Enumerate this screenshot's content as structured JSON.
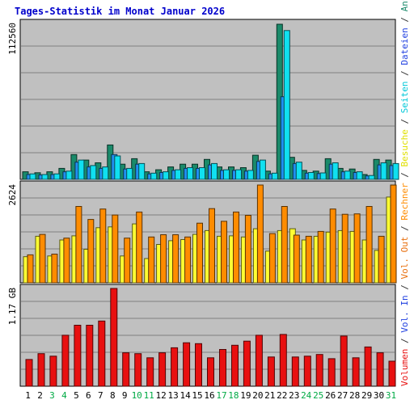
{
  "title": "Tages-Statistik im Monat Januar 2026",
  "colors": {
    "panel_bg": "#c0c0c0",
    "grid": "#808080",
    "anfragen": "#1a8a6a",
    "dateien": "#2090f0",
    "seiten": "#10e0f0",
    "besuche": "#ffff33",
    "rechner": "#ff8c00",
    "volumen": "#e81010",
    "weekday_label": "#000000",
    "weekend_label": "#00aa44",
    "sep": "#606060",
    "slash": "#333333"
  },
  "chart_data": [
    {
      "type": "bar",
      "ytick_label": "112560",
      "ylim": [
        0,
        112560
      ],
      "categories": [
        "1",
        "2",
        "3",
        "4",
        "5",
        "6",
        "7",
        "8",
        "9",
        "10",
        "11",
        "12",
        "13",
        "14",
        "15",
        "16",
        "17",
        "18",
        "19",
        "20",
        "21",
        "22",
        "23",
        "24",
        "25",
        "26",
        "27",
        "28",
        "29",
        "30",
        "31"
      ],
      "series": [
        {
          "name": "Anfragen",
          "values": [
            5500,
            4800,
            5500,
            8000,
            18000,
            14000,
            12000,
            25000,
            11000,
            15000,
            5500,
            7000,
            9000,
            11000,
            11000,
            14500,
            9000,
            9000,
            8500,
            17500,
            6000,
            112560,
            16000,
            6500,
            6000,
            15000,
            8000,
            7500,
            3500,
            14500,
            14000
          ]
        },
        {
          "name": "Dateien",
          "values": [
            3500,
            3200,
            3500,
            5500,
            12500,
            9000,
            8000,
            18000,
            7500,
            11000,
            4000,
            5000,
            6500,
            8000,
            8000,
            10500,
            6500,
            6500,
            6000,
            13000,
            4000,
            60000,
            11500,
            4500,
            4200,
            11000,
            5500,
            5000,
            2500,
            10500,
            10000
          ]
        },
        {
          "name": "Seiten",
          "values": [
            4000,
            3500,
            4000,
            6000,
            14000,
            10000,
            9000,
            17000,
            8000,
            11500,
            4500,
            5500,
            7000,
            8500,
            8500,
            11500,
            7000,
            7000,
            6500,
            14000,
            4500,
            108000,
            12500,
            5000,
            4700,
            12000,
            6000,
            5500,
            2800,
            12000,
            11500
          ]
        }
      ]
    },
    {
      "type": "bar",
      "ytick_label": "2624",
      "ylim": [
        0,
        2624
      ],
      "categories": [
        "1",
        "2",
        "3",
        "4",
        "5",
        "6",
        "7",
        "8",
        "9",
        "10",
        "11",
        "12",
        "13",
        "14",
        "15",
        "16",
        "17",
        "18",
        "19",
        "20",
        "21",
        "22",
        "23",
        "24",
        "25",
        "26",
        "27",
        "28",
        "29",
        "30",
        "31"
      ],
      "series": [
        {
          "name": "Besuche",
          "values": [
            700,
            1250,
            720,
            1150,
            1260,
            900,
            1480,
            1500,
            720,
            1580,
            650,
            1030,
            1130,
            1160,
            1300,
            1400,
            1250,
            1260,
            1230,
            1450,
            850,
            1400,
            1450,
            1150,
            1250,
            1360,
            1400,
            1380,
            1150,
            870,
            2300
          ]
        },
        {
          "name": "Rechner",
          "values": [
            750,
            1300,
            770,
            1200,
            2050,
            1700,
            1980,
            1820,
            1200,
            1900,
            1230,
            1290,
            1290,
            1230,
            1600,
            1990,
            1650,
            1900,
            1810,
            2624,
            1320,
            2050,
            1280,
            1250,
            1380,
            1980,
            1840,
            1850,
            2050,
            1250,
            2624
          ]
        }
      ]
    },
    {
      "type": "bar",
      "ytick_label": "1.17 GB",
      "ylim": [
        0,
        1.17
      ],
      "categories": [
        "1",
        "2",
        "3",
        "4",
        "5",
        "6",
        "7",
        "8",
        "9",
        "10",
        "11",
        "12",
        "13",
        "14",
        "15",
        "16",
        "17",
        "18",
        "19",
        "20",
        "21",
        "22",
        "23",
        "24",
        "25",
        "26",
        "27",
        "28",
        "29",
        "30",
        "31"
      ],
      "series": [
        {
          "name": "Volumen",
          "values": [
            0.32,
            0.39,
            0.36,
            0.61,
            0.73,
            0.73,
            0.78,
            1.17,
            0.4,
            0.39,
            0.34,
            0.4,
            0.46,
            0.52,
            0.51,
            0.34,
            0.44,
            0.49,
            0.54,
            0.61,
            0.35,
            0.62,
            0.35,
            0.36,
            0.38,
            0.33,
            0.6,
            0.34,
            0.47,
            0.4,
            0.3
          ]
        }
      ]
    }
  ],
  "x_labels": [
    "1",
    "2",
    "3",
    "4",
    "5",
    "6",
    "7",
    "8",
    "9",
    "10",
    "11",
    "12",
    "13",
    "14",
    "15",
    "16",
    "17",
    "18",
    "19",
    "20",
    "21",
    "22",
    "23",
    "24",
    "25",
    "26",
    "27",
    "28",
    "29",
    "30",
    "31"
  ],
  "weekend_days": [
    "3",
    "4",
    "10",
    "11",
    "17",
    "18",
    "24",
    "25",
    "31"
  ],
  "legend": [
    {
      "text": "Volumen",
      "color": "#e81010"
    },
    {
      "text": "Vol. In",
      "color": "#2040e0"
    },
    {
      "text": "Vol. Out",
      "color": "#e87010"
    },
    {
      "text": "Rechner",
      "color": "#ff8c00"
    },
    {
      "text": "Besuche",
      "color": "#e0e000"
    },
    {
      "text": "Seiten",
      "color": "#00c8d8"
    },
    {
      "text": "Dateien",
      "color": "#2040e0"
    },
    {
      "text": "Anfragen",
      "color": "#1a8a6a"
    }
  ]
}
